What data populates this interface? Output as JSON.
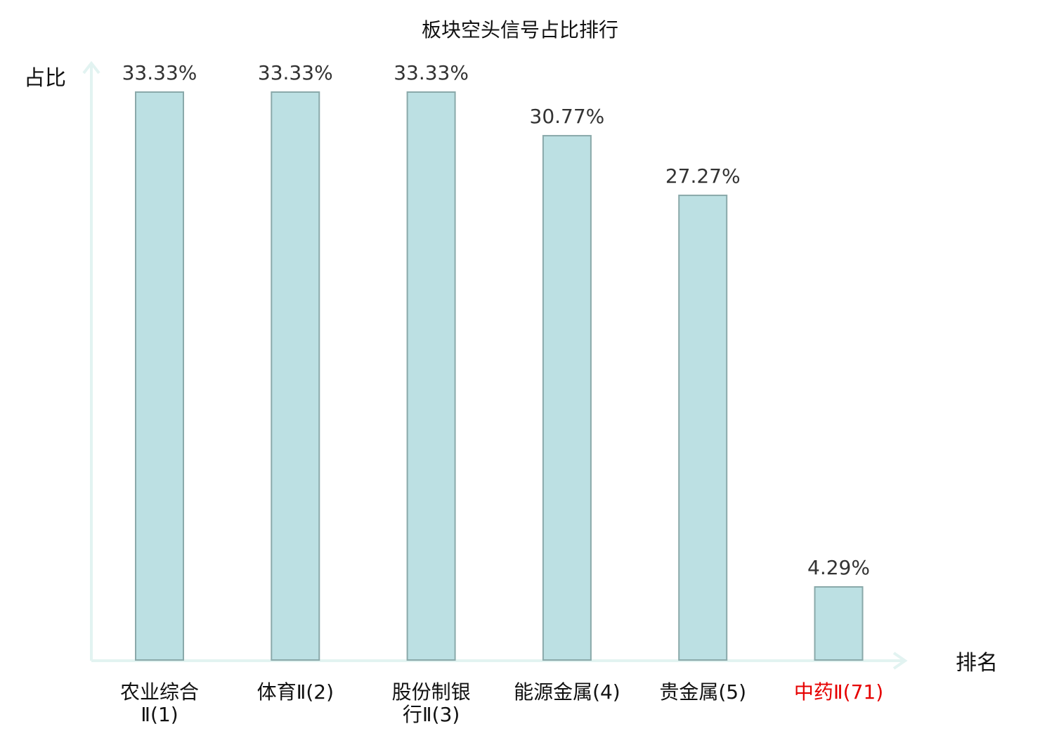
{
  "chart_data": {
    "type": "bar",
    "title": "板块空头信号占比排行",
    "xlabel": "排名",
    "ylabel": "占比",
    "ylim": [
      0,
      33.33
    ],
    "grid": false,
    "categories": [
      {
        "lines": [
          "农业综合",
          "Ⅱ(1)"
        ]
      },
      {
        "lines": [
          "体育Ⅱ(2)"
        ]
      },
      {
        "lines": [
          "股份制银",
          "行Ⅱ(3)"
        ]
      },
      {
        "lines": [
          "能源金属(4)"
        ]
      },
      {
        "lines": [
          "贵金属(5)"
        ]
      },
      {
        "lines": [
          "中药Ⅱ(71)"
        ],
        "highlight": true
      }
    ],
    "values": [
      33.33,
      33.33,
      33.33,
      30.77,
      27.27,
      4.29
    ],
    "value_labels": [
      "33.33%",
      "33.33%",
      "33.33%",
      "30.77%",
      "27.27%",
      "4.29%"
    ]
  },
  "colors": {
    "bar_fill": "#bce0e3",
    "bar_stroke": "#8aa9aa",
    "axis": "#e2f3f1",
    "label": "#111111",
    "value_label": "#333333",
    "highlight": "#e60000"
  }
}
